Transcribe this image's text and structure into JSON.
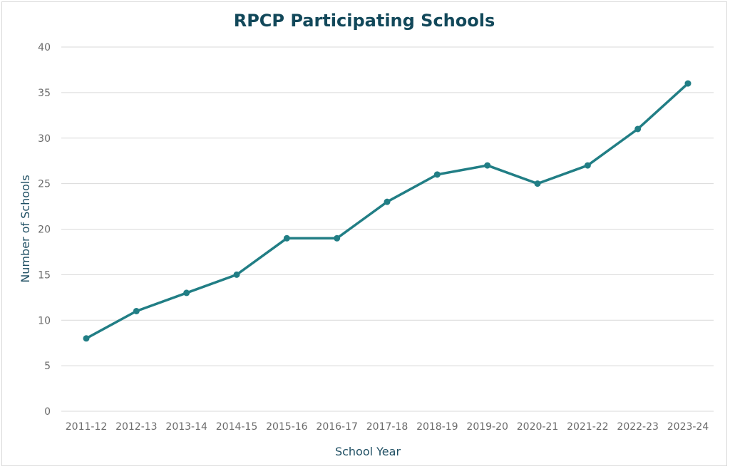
{
  "chart_data": {
    "type": "line",
    "title": "RPCP Participating Schools",
    "xlabel": "School Year",
    "ylabel": "Number of Schools",
    "categories": [
      "2011-12",
      "2012-13",
      "2013-14",
      "2014-15",
      "2015-16",
      "2016-17",
      "2017-18",
      "2018-19",
      "2019-20",
      "2020-21",
      "2021-22",
      "2022-23",
      "2023-24"
    ],
    "series": [
      {
        "name": "RPCP Participating Schools",
        "values": [
          8,
          11,
          13,
          15,
          19,
          19,
          23,
          26,
          27,
          25,
          27,
          31,
          36
        ],
        "color": "#217e85"
      }
    ],
    "ylim": [
      0,
      40
    ],
    "yticks": [
      "0",
      "5",
      "10",
      "15",
      "20",
      "25",
      "30",
      "35",
      "40"
    ],
    "grid": true,
    "legend": "none"
  }
}
